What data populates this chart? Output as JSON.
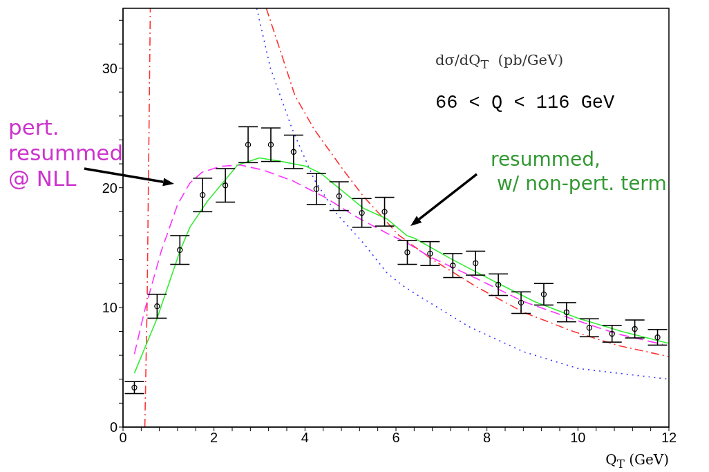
{
  "chart_data": {
    "type": "line",
    "xlabel": "Q$_{T}$ (GeV)",
    "xlim": [
      0,
      12
    ],
    "xticks": [
      0,
      {
        "value": 0.4,
        "label": null
      },
      {
        "value": 0.8,
        "label": null
      },
      {
        "value": 1.2,
        "label": null
      },
      {
        "value": 1.6,
        "label": null
      },
      2,
      {
        "value": 2.4,
        "label": null
      },
      {
        "value": 2.8,
        "label": null
      },
      {
        "value": 3.2,
        "label": null
      },
      {
        "value": 3.6,
        "label": null
      },
      4,
      {
        "value": 4.4,
        "label": null
      },
      {
        "value": 4.8,
        "label": null
      },
      {
        "value": 5.2,
        "label": null
      },
      {
        "value": 5.6,
        "label": null
      },
      6,
      {
        "value": 6.4,
        "label": null
      },
      {
        "value": 6.8,
        "label": null
      },
      {
        "value": 7.2,
        "label": null
      },
      {
        "value": 7.6,
        "label": null
      },
      8,
      {
        "value": 8.4,
        "label": null
      },
      {
        "value": 8.8,
        "label": null
      },
      {
        "value": 9.2,
        "label": null
      },
      {
        "value": 9.6,
        "label": null
      },
      10,
      {
        "value": 10.4,
        "label": null
      },
      {
        "value": 10.8,
        "label": null
      },
      {
        "value": 11.2,
        "label": null
      },
      {
        "value": 11.6,
        "label": null
      },
      12
    ],
    "ylim": [
      0,
      35
    ],
    "yticks": [
      0,
      {
        "value": 2,
        "label": null
      },
      {
        "value": 4,
        "label": null
      },
      {
        "value": 6,
        "label": null
      },
      {
        "value": 8,
        "label": null
      },
      10,
      {
        "value": 12,
        "label": null
      },
      {
        "value": 14,
        "label": null
      },
      {
        "value": 16,
        "label": null
      },
      {
        "value": 18,
        "label": null
      },
      20,
      {
        "value": 22,
        "label": null
      },
      {
        "value": 24,
        "label": null
      },
      {
        "value": 26,
        "label": null
      },
      {
        "value": 28,
        "label": null
      },
      30,
      {
        "value": 32,
        "label": null
      },
      {
        "value": 34,
        "label": null
      }
    ],
    "series": [
      {
        "color": "#3333ff",
        "line_style": "dotted",
        "x": [
          2.94,
          3.24,
          3.72,
          4.2,
          4.68,
          5.28,
          5.8,
          6.12,
          6.4,
          7.6,
          8.8,
          10.0,
          12.0
        ],
        "values": [
          35,
          30.0,
          24.9,
          20.7,
          17.9,
          15.4,
          12.9,
          11.9,
          11.2,
          8.4,
          6.3,
          4.9,
          4.0
        ]
      },
      {
        "color": "#ff3333",
        "line_style": "dashdot",
        "x": [
          0.48,
          0.53,
          0.57,
          0.6
        ],
        "values": [
          0,
          10.3,
          24.2,
          35
        ]
      },
      {
        "color": "#ff3333",
        "line_style": "dashdot",
        "x": [
          3.15,
          3.48,
          3.78,
          4.2,
          4.86,
          5.28,
          5.88,
          6.04,
          6.76,
          7.78,
          8.8,
          9.89,
          10.9,
          11.99
        ],
        "values": [
          35,
          31.2,
          27.7,
          24.9,
          21.4,
          19.3,
          16.8,
          16.1,
          14.1,
          11.7,
          9.6,
          8.0,
          6.8,
          5.9
        ]
      },
      {
        "color": "#ff33ff",
        "line_style": "dashed",
        "x": [
          0.25,
          0.48,
          0.84,
          1.2,
          1.47,
          1.74,
          2.16,
          2.58,
          3.06,
          3.72,
          4.44,
          5.16,
          5.8,
          6.24,
          6.76,
          7.78,
          8.8,
          9.83,
          10.85,
          11.87
        ],
        "values": [
          6.1,
          9.8,
          14.7,
          18.6,
          20.4,
          21.3,
          21.8,
          21.9,
          21.5,
          20.6,
          19.2,
          17.5,
          16.2,
          15.4,
          14.2,
          12.4,
          10.5,
          9.1,
          7.8,
          6.9
        ]
      },
      {
        "color": "#33ee33",
        "line_style": "solid",
        "x": [
          0.25,
          0.75,
          1.26,
          1.47,
          1.86,
          2.52,
          3.0,
          3.48,
          4.02,
          4.35,
          4.8,
          5.28,
          5.8,
          6.24,
          6.4,
          7.24,
          8.2,
          9.04,
          10.0,
          10.96,
          11.99
        ],
        "values": [
          4.5,
          9.1,
          14.8,
          16.7,
          18.9,
          21.9,
          22.5,
          22.2,
          21.8,
          21.2,
          19.8,
          18.3,
          17.4,
          16.0,
          15.8,
          14.0,
          12.1,
          10.5,
          9.1,
          8.0,
          7.0
        ]
      },
      {
        "type": "scatter",
        "color": "#000000",
        "marker": "circle",
        "x": [
          0.25,
          0.75,
          1.25,
          1.75,
          2.25,
          2.75,
          3.25,
          3.75,
          4.25,
          4.75,
          5.25,
          5.75,
          6.25,
          6.75,
          7.25,
          7.75,
          8.25,
          8.75,
          9.25,
          9.75,
          10.25,
          10.75,
          11.25,
          11.75
        ],
        "values": [
          3.3,
          10.1,
          14.8,
          19.4,
          20.2,
          23.6,
          23.6,
          23.0,
          19.9,
          19.3,
          17.9,
          18.0,
          14.6,
          14.5,
          13.5,
          13.7,
          11.9,
          10.4,
          11.1,
          9.6,
          8.3,
          7.8,
          8.2,
          7.5
        ],
        "errors": [
          0.5,
          1.0,
          1.2,
          1.4,
          1.4,
          1.5,
          1.4,
          1.4,
          1.3,
          1.2,
          1.2,
          1.2,
          1.0,
          1.0,
          1.0,
          1.0,
          0.9,
          0.9,
          0.9,
          0.8,
          0.75,
          0.7,
          0.75,
          0.65
        ]
      }
    ],
    "annotations": [
      "dσ/dQ$_{T}$  (pb/GeV)",
      "66 < Q < 116 GeV",
      "pert.\nresummed\n@ NLL",
      "resummed,\n w/ non-pert. term"
    ]
  }
}
